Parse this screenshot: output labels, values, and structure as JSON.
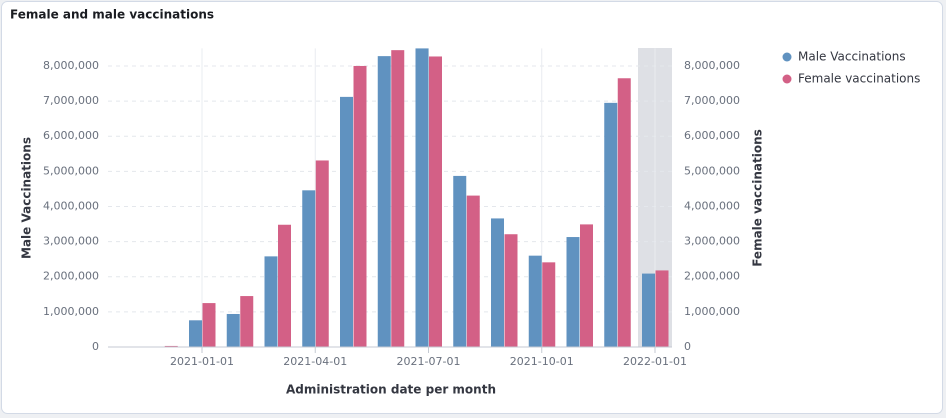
{
  "chart_data": {
    "type": "bar",
    "title": "Female and male vaccinations",
    "x_label": "Administration date per month",
    "y_label": "Male Vaccinations",
    "y2_label": "Female vaccinations",
    "categories": [
      null,
      "2021-01-01",
      null,
      null,
      "2021-04-01",
      null,
      null,
      "2021-07-01",
      null,
      null,
      "2021-10-01",
      null,
      null,
      "2022-01-01"
    ],
    "series": [
      {
        "name": "Male Vaccinations",
        "color": "#6092c0",
        "axis": "y",
        "values": [
          10000,
          760000,
          940000,
          2580000,
          4460000,
          7120000,
          8280000,
          8500000,
          4870000,
          3660000,
          2600000,
          3130000,
          6950000,
          2090000
        ]
      },
      {
        "name": "Female vaccinations",
        "color": "#d36086",
        "axis": "y2",
        "values": [
          30000,
          1250000,
          1450000,
          3480000,
          5310000,
          8000000,
          8450000,
          8270000,
          4310000,
          3210000,
          2410000,
          3490000,
          7650000,
          2180000
        ]
      }
    ],
    "ylim": [
      0,
      8500000
    ],
    "yticks": [
      0,
      {
        "value": 1000000,
        "label": "1,000,000"
      },
      {
        "value": 2000000,
        "label": "2,000,000"
      },
      {
        "value": 3000000,
        "label": "3,000,000"
      },
      {
        "value": 4000000,
        "label": "4,000,000"
      },
      {
        "value": 5000000,
        "label": "5,000,000"
      },
      {
        "value": 6000000,
        "label": "6,000,000"
      },
      {
        "value": 7000000,
        "label": "7,000,000"
      },
      {
        "value": 8000000,
        "label": "8,000,000"
      }
    ],
    "y2lim": [
      0,
      8500000
    ],
    "y2ticks": [
      0,
      {
        "value": 1000000,
        "label": "1,000,000"
      },
      {
        "value": 2000000,
        "label": "2,000,000"
      },
      {
        "value": 3000000,
        "label": "3,000,000"
      },
      {
        "value": 4000000,
        "label": "4,000,000"
      },
      {
        "value": 5000000,
        "label": "5,000,000"
      },
      {
        "value": 6000000,
        "label": "6,000,000"
      },
      {
        "value": 7000000,
        "label": "7,000,000"
      },
      {
        "value": 8000000,
        "label": "8,000,000"
      }
    ],
    "grid": true,
    "legend": "right"
  }
}
